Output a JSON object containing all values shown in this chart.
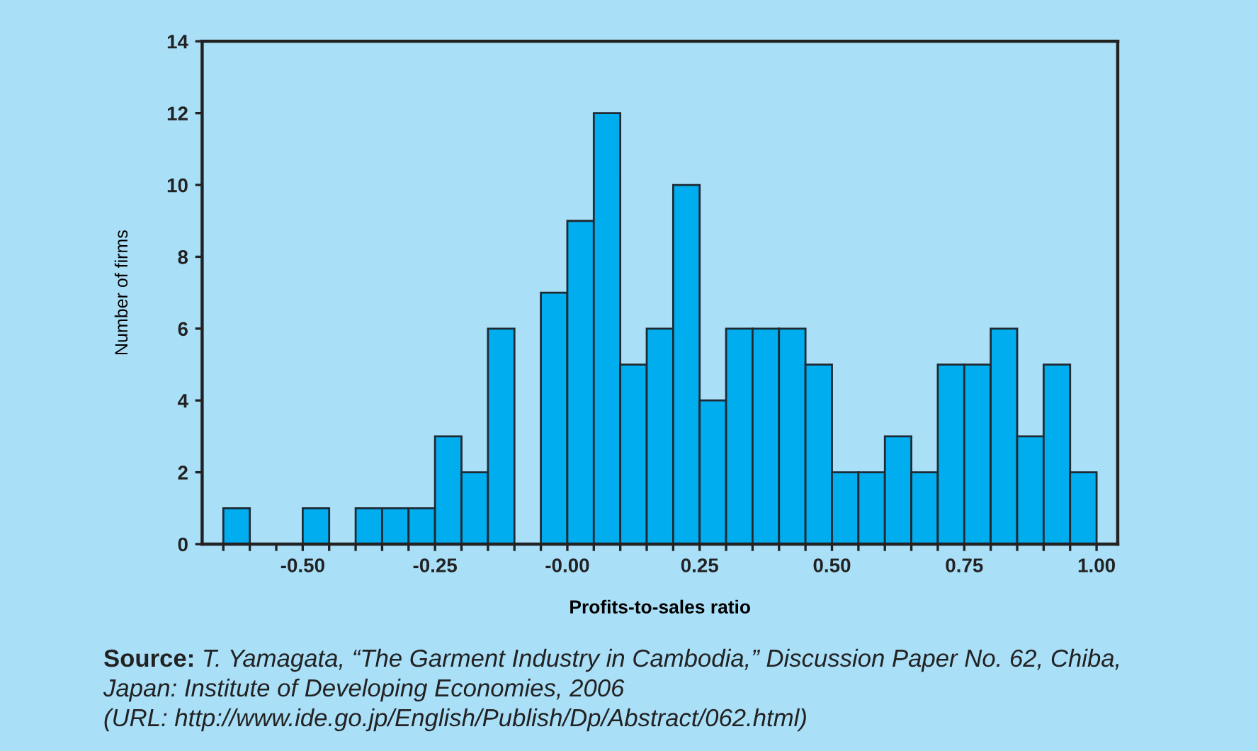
{
  "chart_data": {
    "type": "histogram",
    "xlabel": "Profits-to-sales ratio",
    "ylabel": "Number of firms",
    "bins": [
      -0.65,
      -0.6,
      -0.55,
      -0.5,
      -0.45,
      -0.4,
      -0.35,
      -0.3,
      -0.25,
      -0.2,
      -0.15,
      -0.1,
      -0.05,
      0.0,
      0.05,
      0.1,
      0.15,
      0.2,
      0.25,
      0.3,
      0.35,
      0.4,
      0.45,
      0.5,
      0.55,
      0.6,
      0.65,
      0.7,
      0.75,
      0.8,
      0.85,
      0.9,
      0.95,
      1.0
    ],
    "values": [
      1,
      0,
      0,
      1,
      0,
      1,
      1,
      1,
      3,
      2,
      6,
      0,
      7,
      9,
      12,
      5,
      6,
      10,
      4,
      6,
      6,
      6,
      5,
      2,
      2,
      3,
      2,
      5,
      5,
      6,
      3,
      5,
      2
    ],
    "color": "#00aeef",
    "xlim": [
      -0.69,
      1.04
    ],
    "ylim": [
      0,
      14
    ],
    "xticks": [
      {
        "value": -0.65,
        "label": null
      },
      {
        "value": -0.6,
        "label": null
      },
      {
        "value": -0.55,
        "label": null
      },
      {
        "value": -0.5,
        "label": "-0.50"
      },
      {
        "value": -0.45,
        "label": null
      },
      {
        "value": -0.4,
        "label": null
      },
      {
        "value": -0.35,
        "label": null
      },
      {
        "value": -0.3,
        "label": null
      },
      {
        "value": -0.25,
        "label": "-0.25"
      },
      {
        "value": -0.2,
        "label": null
      },
      {
        "value": -0.15,
        "label": null
      },
      {
        "value": -0.1,
        "label": null
      },
      {
        "value": -0.05,
        "label": null
      },
      {
        "value": 0,
        "label": "-0.00"
      },
      {
        "value": 0.05,
        "label": null
      },
      {
        "value": 0.1,
        "label": null
      },
      {
        "value": 0.15,
        "label": null
      },
      {
        "value": 0.2,
        "label": null
      },
      {
        "value": 0.25,
        "label": "0.25"
      },
      {
        "value": 0.3,
        "label": null
      },
      {
        "value": 0.35,
        "label": null
      },
      {
        "value": 0.4,
        "label": null
      },
      {
        "value": 0.45,
        "label": null
      },
      {
        "value": 0.5,
        "label": "0.50"
      },
      {
        "value": 0.55,
        "label": null
      },
      {
        "value": 0.6,
        "label": null
      },
      {
        "value": 0.65,
        "label": null
      },
      {
        "value": 0.7,
        "label": null
      },
      {
        "value": 0.75,
        "label": "0.75"
      },
      {
        "value": 0.8,
        "label": null
      },
      {
        "value": 0.85,
        "label": null
      },
      {
        "value": 0.9,
        "label": null
      },
      {
        "value": 0.95,
        "label": null
      },
      {
        "value": 1.0,
        "label": "1.00"
      }
    ],
    "yticks": [
      0,
      2,
      4,
      6,
      8,
      10,
      12,
      14
    ],
    "grid": false,
    "annotations": [
      "Source:",
      "T. Yamagata, “The Garment Industry in Cambodia,” Discussion Paper No. 62, Chiba,\nJapan: Institute of Developing Economies, 2006\n(URL: http://www.ide.go.jp/English/Publish/Dp/Abstract/062.html)"
    ]
  }
}
